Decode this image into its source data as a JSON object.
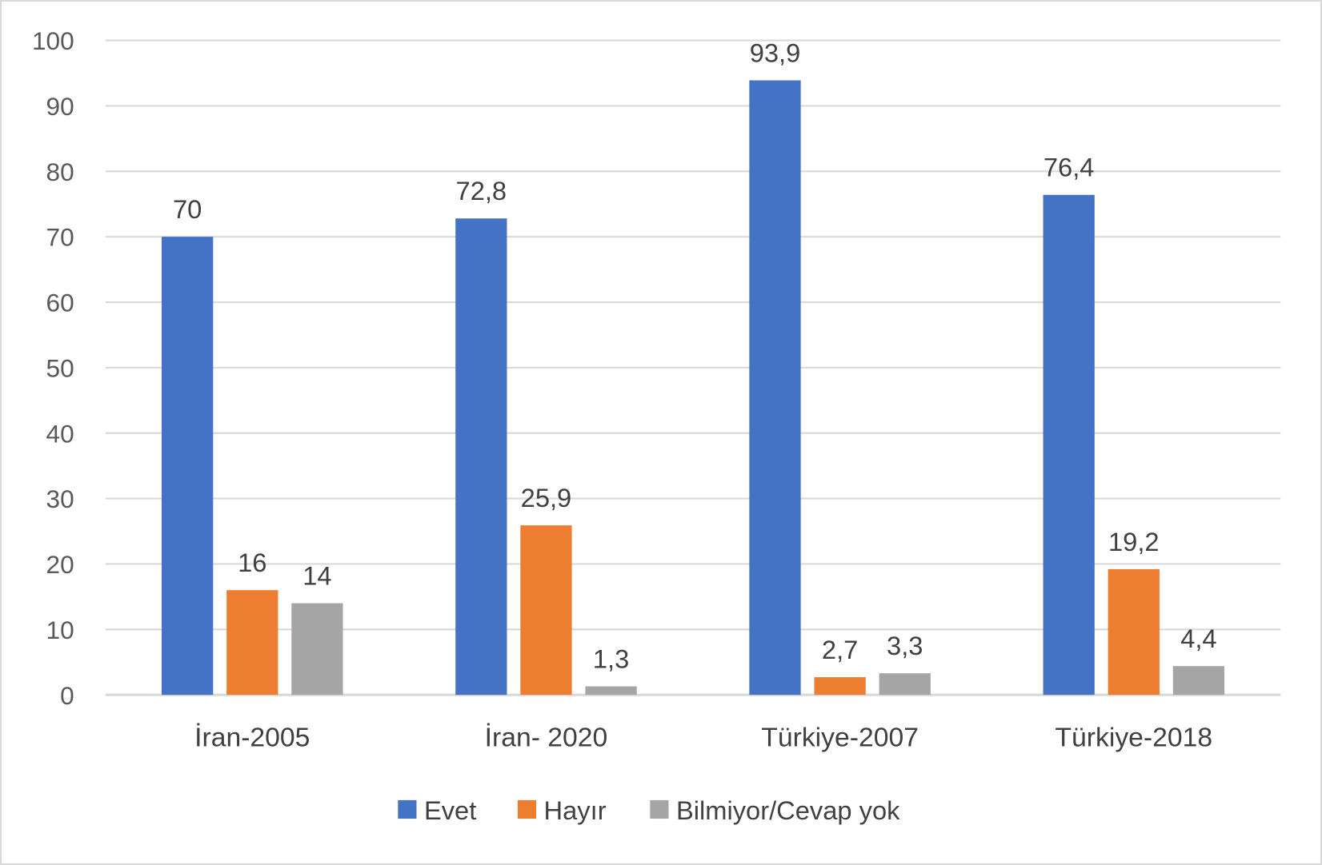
{
  "chart_data": {
    "type": "bar",
    "title": "",
    "xlabel": "",
    "ylabel": "",
    "ylim": [
      0,
      100
    ],
    "yticks": [
      0,
      10,
      20,
      30,
      40,
      50,
      60,
      70,
      80,
      90,
      100
    ],
    "grid": true,
    "legend_position": "bottom",
    "categories": [
      "İran-2005",
      "İran- 2020",
      "Türkiye-2007",
      "Türkiye-2018"
    ],
    "series": [
      {
        "name": "Evet",
        "color": "#4472C4",
        "values": [
          70,
          72.8,
          93.9,
          76.4
        ],
        "labels": [
          "70",
          "72,8",
          "93,9",
          "76,4"
        ]
      },
      {
        "name": "Hayır",
        "color": "#ED7D31",
        "values": [
          16,
          25.9,
          2.7,
          19.2
        ],
        "labels": [
          "16",
          "25,9",
          "2,7",
          "19,2"
        ]
      },
      {
        "name": "Bilmiyor/Cevap yok",
        "color": "#A5A5A5",
        "values": [
          14,
          1.3,
          3.3,
          4.4
        ],
        "labels": [
          "14",
          "1,3",
          "3,3",
          "4,4"
        ]
      }
    ]
  }
}
